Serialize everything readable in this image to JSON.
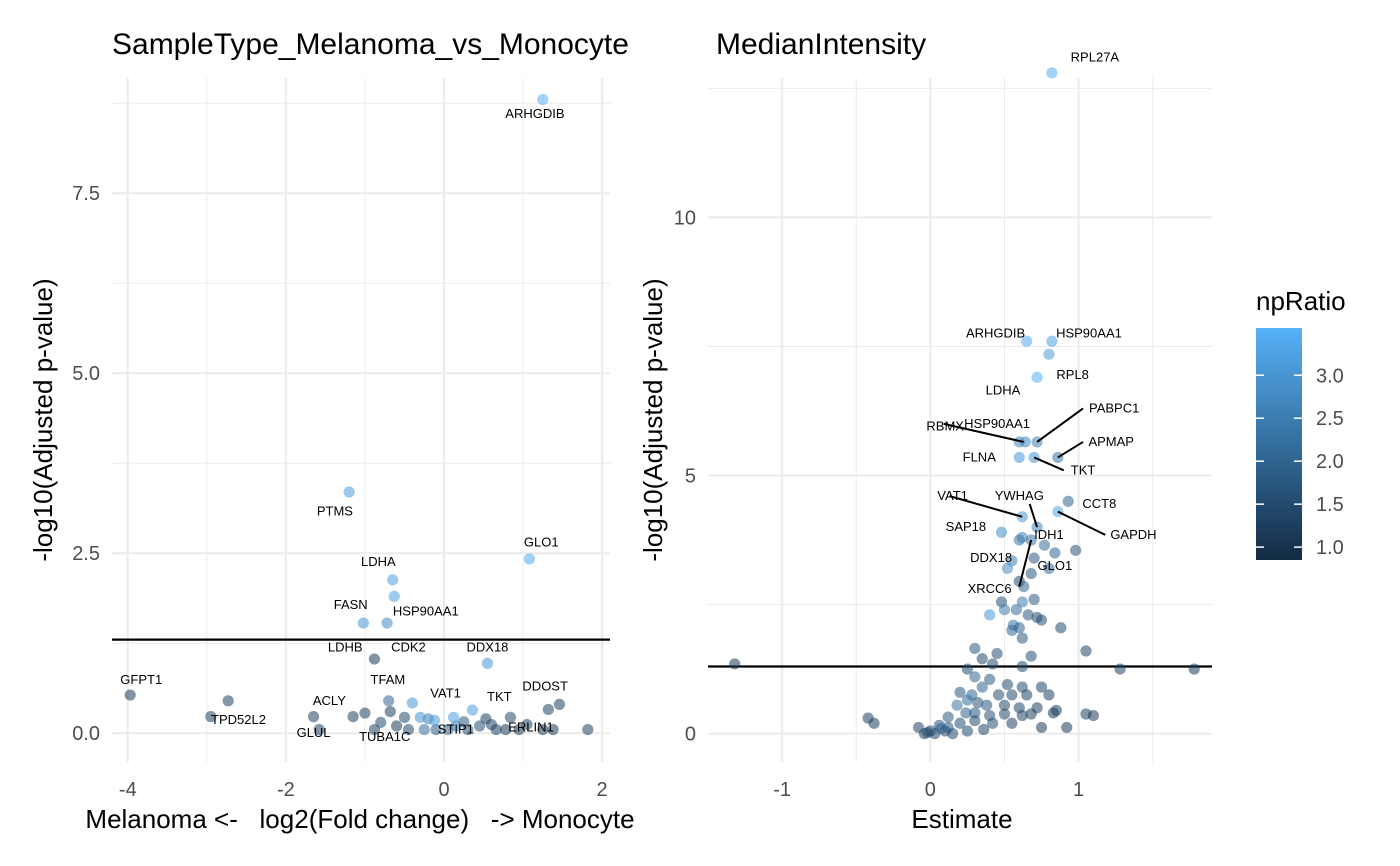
{
  "colors": {
    "low": "#132B43",
    "high": "#56B1F7",
    "grid": "#ebebeb",
    "threshold": "#000000",
    "text": "#000000",
    "tick_text": "#4d4d4d"
  },
  "legend": {
    "title": "npRatio",
    "min": 0.85,
    "max": 3.55,
    "ticks": [
      "1.0",
      "1.5",
      "2.0",
      "2.5",
      "3.0"
    ],
    "tick_values": [
      1.0,
      1.5,
      2.0,
      2.5,
      3.0
    ]
  },
  "chart_data": [
    {
      "type": "scatter",
      "title": "SampleType_Melanoma_vs_Monocyte",
      "xlabel": "Melanoma <-   log2(Fold change)   -> Monocyte",
      "ylabel": "-log10(Adjusted p-value)",
      "xlim": [
        -4.2,
        2.1
      ],
      "ylim": [
        -0.4,
        9.1
      ],
      "xticks": [
        -4,
        -2,
        0,
        2
      ],
      "xtick_labels": [
        "-4",
        "-2",
        "0",
        "2"
      ],
      "yticks": [
        0,
        2.5,
        5,
        7.5
      ],
      "ytick_labels": [
        "0.0",
        "2.5",
        "5.0",
        "7.5"
      ],
      "threshold": 1.3,
      "points": [
        [
          1.25,
          8.8,
          3.5
        ],
        [
          -1.2,
          3.35,
          3.1
        ],
        [
          1.08,
          2.42,
          3.4
        ],
        [
          -0.65,
          2.13,
          3.2
        ],
        [
          -0.63,
          1.9,
          3.2
        ],
        [
          -1.02,
          1.53,
          3.0
        ],
        [
          -0.72,
          1.53,
          2.8
        ],
        [
          -0.88,
          1.03,
          1.2
        ],
        [
          0.55,
          0.97,
          3.0
        ],
        [
          -3.97,
          0.53,
          1.2
        ],
        [
          -2.73,
          0.45,
          1.3
        ],
        [
          -2.95,
          0.23,
          1.3
        ],
        [
          -1.65,
          0.23,
          1.3
        ],
        [
          -1.58,
          0.05,
          1.3
        ],
        [
          -1.15,
          0.23,
          1.3
        ],
        [
          -1.0,
          0.28,
          1.3
        ],
        [
          -0.7,
          0.45,
          2.0
        ],
        [
          -0.4,
          0.42,
          3.0
        ],
        [
          -0.88,
          0.05,
          1.3
        ],
        [
          -0.8,
          0.15,
          1.5
        ],
        [
          1.46,
          0.4,
          1.3
        ],
        [
          1.32,
          0.33,
          1.3
        ],
        [
          1.82,
          0.05,
          1.3
        ],
        [
          1.38,
          0.05,
          1.2
        ],
        [
          1.25,
          0.05,
          1.2
        ],
        [
          0.36,
          0.32,
          3.2
        ],
        [
          0.53,
          0.2,
          1.3
        ],
        [
          0.84,
          0.22,
          1.5
        ],
        [
          0.15,
          0.1,
          2.6
        ],
        [
          0.05,
          0.05,
          2.0
        ],
        [
          -0.1,
          0.05,
          1.8
        ],
        [
          -0.2,
          0.2,
          2.6
        ],
        [
          -0.3,
          0.22,
          3.0
        ],
        [
          -0.5,
          0.22,
          1.5
        ],
        [
          -0.6,
          0.1,
          1.2
        ],
        [
          -0.68,
          0.3,
          1.3
        ],
        [
          0.25,
          0.16,
          1.8
        ],
        [
          0.45,
          0.1,
          1.6
        ],
        [
          0.66,
          0.05,
          1.3
        ],
        [
          0.95,
          0.05,
          1.2
        ],
        [
          1.05,
          0.12,
          1.3
        ],
        [
          0.78,
          0.05,
          1.2
        ],
        [
          0.3,
          0.05,
          1.6
        ],
        [
          -0.25,
          0.05,
          2.2
        ],
        [
          -0.45,
          0.05,
          1.5
        ],
        [
          0.6,
          0.12,
          1.4
        ],
        [
          0.12,
          0.22,
          3.2
        ],
        [
          -0.12,
          0.18,
          3.1
        ]
      ],
      "labels": [
        {
          "text": "ARHGDIB",
          "x": 1.15,
          "y": 8.6
        },
        {
          "text": "PTMS",
          "x": -1.38,
          "y": 3.08
        },
        {
          "text": "GLO1",
          "x": 1.23,
          "y": 2.65
        },
        {
          "text": "LDHA",
          "x": -0.83,
          "y": 2.38
        },
        {
          "text": "FASN",
          "x": -1.18,
          "y": 1.78
        },
        {
          "text": "HSP90AA1",
          "x": -0.23,
          "y": 1.69
        },
        {
          "text": "LDHB",
          "x": -1.25,
          "y": 1.19
        },
        {
          "text": "CDK2",
          "x": -0.45,
          "y": 1.19
        },
        {
          "text": "DDX18",
          "x": 0.55,
          "y": 1.19
        },
        {
          "text": "TFAM",
          "x": -0.71,
          "y": 0.74
        },
        {
          "text": "GFPT1",
          "x": -3.83,
          "y": 0.74
        },
        {
          "text": "ACLY",
          "x": -1.45,
          "y": 0.45
        },
        {
          "text": "VAT1",
          "x": 0.02,
          "y": 0.55
        },
        {
          "text": "TKT",
          "x": 0.7,
          "y": 0.5
        },
        {
          "text": "DDOST",
          "x": 1.28,
          "y": 0.65
        },
        {
          "text": "TPD52L2",
          "x": -2.6,
          "y": 0.18
        },
        {
          "text": "GLUL",
          "x": -1.65,
          "y": 0.0
        },
        {
          "text": "TUBA1C",
          "x": -0.75,
          "y": -0.05
        },
        {
          "text": "STIP1",
          "x": 0.15,
          "y": 0.05
        },
        {
          "text": "ERLIN1",
          "x": 1.1,
          "y": 0.08
        }
      ],
      "callouts": []
    },
    {
      "type": "scatter",
      "title": "MedianIntensity",
      "xlabel": "Estimate",
      "ylabel": "-log10(Adjusted p-value)",
      "xlim": [
        -1.5,
        1.9
      ],
      "ylim": [
        -0.55,
        12.7
      ],
      "xticks": [
        -1,
        0,
        1
      ],
      "xtick_labels": [
        "-1",
        "0",
        "1"
      ],
      "yticks": [
        0,
        5,
        10
      ],
      "ytick_labels": [
        "0",
        "5",
        "10"
      ],
      "threshold": 1.3,
      "points": [
        [
          0.82,
          12.8,
          3.5
        ],
        [
          0.65,
          7.6,
          3.4
        ],
        [
          0.82,
          7.6,
          3.2
        ],
        [
          0.8,
          7.35,
          3.1
        ],
        [
          0.72,
          6.9,
          3.5
        ],
        [
          0.6,
          5.65,
          2.7
        ],
        [
          0.64,
          5.65,
          2.7
        ],
        [
          0.72,
          5.65,
          2.6
        ],
        [
          0.6,
          5.35,
          3.0
        ],
        [
          0.7,
          5.35,
          3.0
        ],
        [
          0.86,
          5.35,
          2.3
        ],
        [
          0.93,
          4.5,
          2.0
        ],
        [
          0.86,
          4.3,
          3.3
        ],
        [
          0.62,
          4.2,
          3.0
        ],
        [
          0.72,
          4.0,
          2.6
        ],
        [
          0.48,
          3.9,
          2.8
        ],
        [
          0.62,
          3.8,
          2.6
        ],
        [
          0.6,
          3.75,
          2.4
        ],
        [
          0.68,
          3.75,
          2.3
        ],
        [
          0.77,
          3.65,
          2.2
        ],
        [
          0.98,
          3.55,
          1.7
        ],
        [
          0.84,
          3.5,
          2.0
        ],
        [
          0.7,
          3.4,
          1.8
        ],
        [
          0.55,
          3.35,
          2.6
        ],
        [
          0.52,
          3.2,
          2.8
        ],
        [
          0.8,
          3.2,
          2.0
        ],
        [
          0.68,
          3.1,
          1.7
        ],
        [
          0.6,
          2.95,
          1.6
        ],
        [
          0.63,
          2.85,
          2.0
        ],
        [
          0.7,
          2.6,
          1.8
        ],
        [
          0.48,
          2.55,
          1.6
        ],
        [
          0.62,
          2.55,
          2.5
        ],
        [
          0.5,
          2.4,
          2.5
        ],
        [
          0.58,
          2.4,
          2.2
        ],
        [
          0.66,
          2.3,
          1.8
        ],
        [
          0.72,
          2.25,
          1.5
        ],
        [
          0.4,
          2.3,
          3.0
        ],
        [
          0.56,
          2.1,
          2.3
        ],
        [
          0.6,
          2.05,
          2.0
        ],
        [
          0.75,
          2.2,
          1.6
        ],
        [
          0.88,
          2.05,
          1.5
        ],
        [
          0.55,
          2.0,
          2.1
        ],
        [
          0.62,
          1.85,
          1.8
        ],
        [
          0.3,
          1.65,
          1.8
        ],
        [
          0.45,
          1.55,
          1.6
        ],
        [
          0.68,
          1.5,
          1.6
        ],
        [
          0.35,
          1.45,
          1.5
        ],
        [
          0.42,
          1.35,
          1.5
        ],
        [
          0.62,
          1.3,
          1.5
        ],
        [
          0.25,
          1.25,
          1.5
        ],
        [
          -1.32,
          1.35,
          1.2
        ],
        [
          1.05,
          1.6,
          1.4
        ],
        [
          1.28,
          1.25,
          1.3
        ],
        [
          1.78,
          1.25,
          1.2
        ],
        [
          0.3,
          1.1,
          2.1
        ],
        [
          0.4,
          1.05,
          1.8
        ],
        [
          0.52,
          0.95,
          1.5
        ],
        [
          0.62,
          0.9,
          1.5
        ],
        [
          0.75,
          0.9,
          1.4
        ],
        [
          0.35,
          0.9,
          2.0
        ],
        [
          0.28,
          0.75,
          2.0
        ],
        [
          0.46,
          0.75,
          1.6
        ],
        [
          0.55,
          0.75,
          1.5
        ],
        [
          0.65,
          0.75,
          1.4
        ],
        [
          0.8,
          0.75,
          1.3
        ],
        [
          0.2,
          0.8,
          1.8
        ],
        [
          0.25,
          0.65,
          2.2
        ],
        [
          0.32,
          0.6,
          1.7
        ],
        [
          0.38,
          0.55,
          1.8
        ],
        [
          0.5,
          0.55,
          1.5
        ],
        [
          0.6,
          0.5,
          1.4
        ],
        [
          0.72,
          0.5,
          1.3
        ],
        [
          0.85,
          0.45,
          1.3
        ],
        [
          0.18,
          0.55,
          2.3
        ],
        [
          0.24,
          0.4,
          1.9
        ],
        [
          0.3,
          0.4,
          1.7
        ],
        [
          0.4,
          0.35,
          1.6
        ],
        [
          0.5,
          0.38,
          1.5
        ],
        [
          0.62,
          0.35,
          1.4
        ],
        [
          0.68,
          0.38,
          1.3
        ],
        [
          0.83,
          0.4,
          1.2
        ],
        [
          1.05,
          0.38,
          1.3
        ],
        [
          1.1,
          0.35,
          1.2
        ],
        [
          0.12,
          0.32,
          1.8
        ],
        [
          0.2,
          0.2,
          1.6
        ],
        [
          0.3,
          0.25,
          1.5
        ],
        [
          0.42,
          0.2,
          1.5
        ],
        [
          0.55,
          0.2,
          1.4
        ],
        [
          0.75,
          0.12,
          1.2
        ],
        [
          0.92,
          0.12,
          1.2
        ],
        [
          0.36,
          0.08,
          1.4
        ],
        [
          0.25,
          0.05,
          1.5
        ],
        [
          0.12,
          0.12,
          1.7
        ],
        [
          0.06,
          0.16,
          1.7
        ],
        [
          0.0,
          0.05,
          1.5
        ],
        [
          -0.04,
          0.0,
          1.4
        ],
        [
          0.03,
          0.0,
          1.4
        ],
        [
          0.1,
          0.05,
          1.5
        ],
        [
          -0.08,
          0.12,
          1.4
        ],
        [
          -0.42,
          0.3,
          1.3
        ],
        [
          -0.38,
          0.2,
          1.3
        ],
        [
          0.07,
          0.1,
          2.0
        ],
        [
          0.15,
          0.0,
          1.5
        ],
        [
          -0.02,
          0.02,
          1.5
        ]
      ],
      "labels": [
        {
          "text": "RPL27A",
          "x": 1.11,
          "y": 13.1
        },
        {
          "text": "ARHGDIB",
          "x": 0.44,
          "y": 7.75
        },
        {
          "text": "HSP90AA1",
          "x": 1.07,
          "y": 7.75
        },
        {
          "text": "RPL8",
          "x": 0.96,
          "y": 6.95
        },
        {
          "text": "LDHA",
          "x": 0.49,
          "y": 6.65
        },
        {
          "text": "PABPC1",
          "x": 1.24,
          "y": 6.3
        },
        {
          "text": "RBMX",
          "x": 0.1,
          "y": 5.95
        },
        {
          "text": "HSP90AA1",
          "x": 0.45,
          "y": 6.0
        },
        {
          "text": "APMAP",
          "x": 1.22,
          "y": 5.65
        },
        {
          "text": "FLNA",
          "x": 0.33,
          "y": 5.35
        },
        {
          "text": "TKT",
          "x": 1.03,
          "y": 5.1
        },
        {
          "text": "VAT1",
          "x": 0.15,
          "y": 4.6
        },
        {
          "text": "YWHAG",
          "x": 0.6,
          "y": 4.6
        },
        {
          "text": "CCT8",
          "x": 1.14,
          "y": 4.45
        },
        {
          "text": "SAP18",
          "x": 0.24,
          "y": 4.0
        },
        {
          "text": "IDH1",
          "x": 0.8,
          "y": 3.85
        },
        {
          "text": "GAPDH",
          "x": 1.37,
          "y": 3.85
        },
        {
          "text": "DDX18",
          "x": 0.41,
          "y": 3.4
        },
        {
          "text": "GLO1",
          "x": 0.84,
          "y": 3.25
        },
        {
          "text": "XRCC6",
          "x": 0.4,
          "y": 2.8
        }
      ],
      "callouts": [
        [
          0.63,
          5.65,
          0.09,
          6.0
        ],
        [
          0.72,
          5.65,
          1.03,
          6.3
        ],
        [
          0.86,
          5.35,
          1.03,
          5.65
        ],
        [
          0.7,
          5.35,
          0.9,
          5.1
        ],
        [
          0.62,
          4.2,
          0.13,
          4.6
        ],
        [
          0.72,
          4.0,
          0.67,
          4.45
        ],
        [
          0.86,
          4.3,
          1.18,
          3.85
        ],
        [
          0.68,
          3.75,
          0.6,
          2.85
        ]
      ]
    }
  ]
}
